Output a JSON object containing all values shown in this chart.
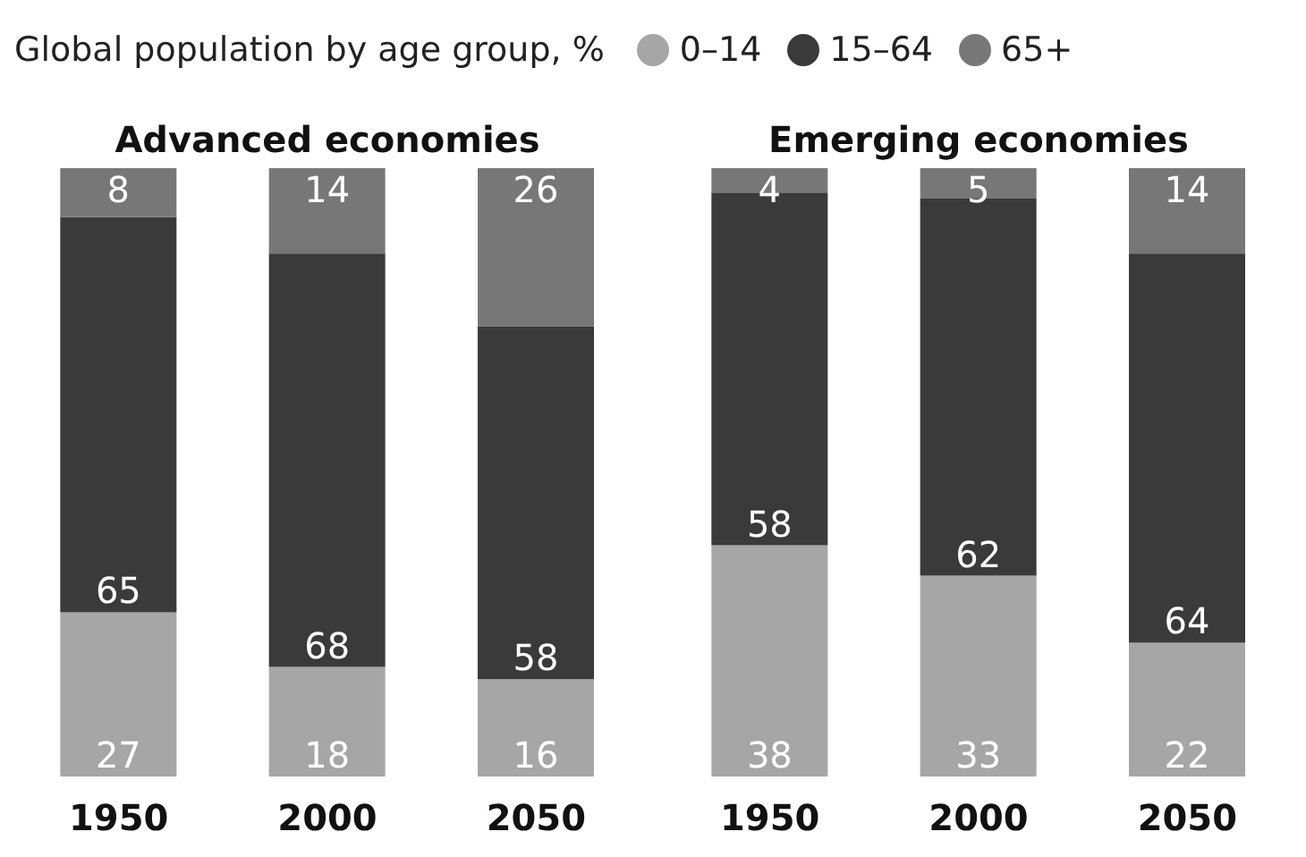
{
  "chart_data": [
    {
      "type": "bar",
      "title": "Advanced economies",
      "legend_title": "Global population by age group, %",
      "legend": "top",
      "stacked": true,
      "data_labels": true,
      "categories": [
        "1950",
        "2000",
        "2050"
      ],
      "series": [
        {
          "name": "0–14",
          "color": "#a6a6a6",
          "values": [
            27,
            18,
            16
          ]
        },
        {
          "name": "15–64",
          "color": "#3a3a3a",
          "values": [
            65,
            68,
            58
          ]
        },
        {
          "name": "65+",
          "color": "#777777",
          "values": [
            8,
            14,
            26
          ]
        }
      ]
    },
    {
      "type": "bar",
      "title": "Emerging economies",
      "stacked": true,
      "data_labels": true,
      "categories": [
        "1950",
        "2000",
        "2050"
      ],
      "series": [
        {
          "color": "#a6a6a6",
          "values": [
            38,
            33,
            22
          ]
        },
        {
          "color": "#3a3a3a",
          "values": [
            58,
            62,
            64
          ]
        },
        {
          "color": "#777777",
          "values": [
            4,
            5,
            14
          ]
        }
      ]
    }
  ]
}
